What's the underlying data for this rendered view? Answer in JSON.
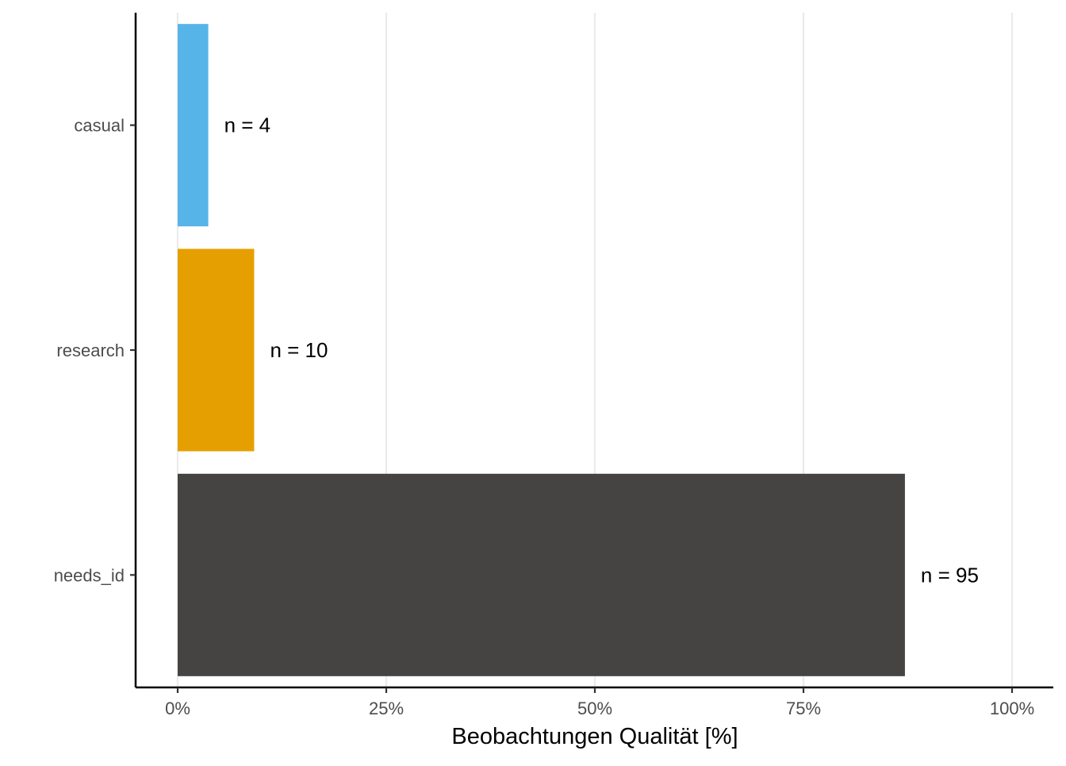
{
  "chart_data": {
    "type": "bar",
    "orientation": "horizontal",
    "categories": [
      "casual",
      "research",
      "needs_id"
    ],
    "values": [
      3.67,
      9.17,
      87.16
    ],
    "bar_labels": [
      "n = 4",
      "n = 10",
      "n = 95"
    ],
    "colors": [
      "#56B4E9",
      "#E69F00",
      "#464442"
    ],
    "title": "",
    "xlabel": "Beobachtungen Qualität [%]",
    "ylabel": "",
    "xlim": [
      -10,
      100
    ],
    "x_ticks": [
      0,
      25,
      50,
      75,
      100
    ],
    "x_tick_labels": [
      "0%",
      "25%",
      "50%",
      "75%",
      "100%"
    ],
    "grid": "vertical-major",
    "legend": "none"
  }
}
